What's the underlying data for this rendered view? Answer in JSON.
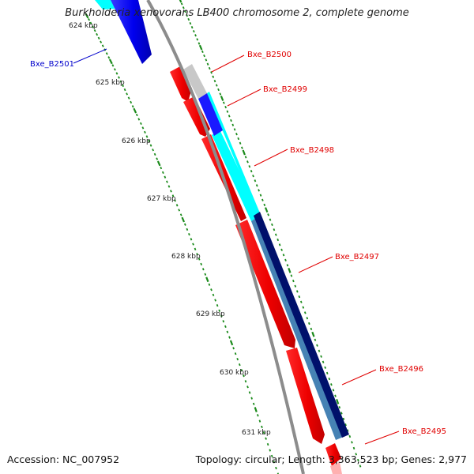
{
  "title": "Burkholderia xenovorans LB400 chromosome 2, complete genome",
  "footer": {
    "accession": "Accession: NC_007952",
    "summary": "Topology: circular; Length: 3,363,523 bp; Genes: 2,977"
  },
  "ruler": {
    "unit_labels": [
      "624 kbp",
      "625 kbp",
      "626 kbp",
      "627 kbp",
      "628 kbp",
      "629 kbp",
      "630 kbp",
      "631 kbp"
    ]
  },
  "genes": [
    {
      "name": "Bxe_B2501",
      "strand": "reverse",
      "label_color": "#0000cc"
    },
    {
      "name": "Bxe_B2500",
      "strand": "forward",
      "label_color": "#e00000"
    },
    {
      "name": "Bxe_B2499",
      "strand": "forward",
      "label_color": "#e00000"
    },
    {
      "name": "Bxe_B2498",
      "strand": "forward",
      "label_color": "#e00000"
    },
    {
      "name": "Bxe_B2497",
      "strand": "forward",
      "label_color": "#e00000"
    },
    {
      "name": "Bxe_B2496",
      "strand": "forward",
      "label_color": "#e00000"
    },
    {
      "name": "Bxe_B2495",
      "strand": "forward",
      "label_color": "#e00000"
    }
  ],
  "colors": {
    "forward_cds": "#ff0000",
    "reverse_cds": "#0000ff",
    "backbone": "#8c8c8c",
    "tick": "#1a8a1a",
    "cyan_feature": "#00ffff",
    "steelblue_feature": "#4682b4",
    "navy_feature": "#000080",
    "light_gray_feature": "#c8c8c8"
  }
}
